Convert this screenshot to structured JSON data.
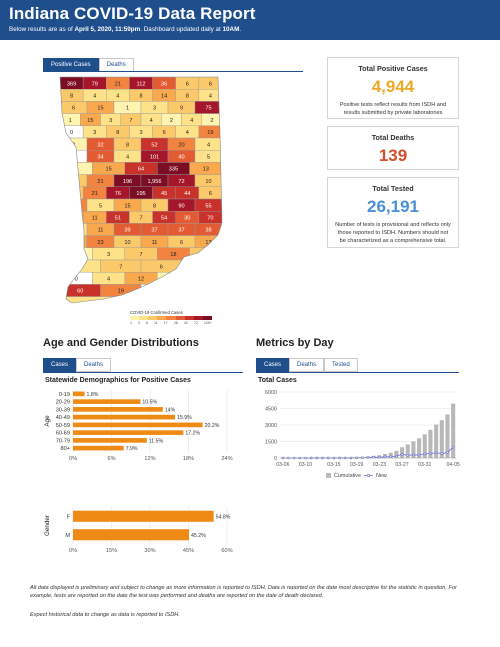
{
  "header": {
    "title": "Indiana COVID-19 Data Report",
    "subtitle_prefix": "Below results are as of ",
    "subtitle_date": "April 5, 2020, 11:59pm",
    "subtitle_mid": ". Dashboard updated daily at ",
    "subtitle_time": "10AM",
    "subtitle_end": "."
  },
  "colors": {
    "brand": "#1f4e8c",
    "positive": "#f0a828",
    "deaths": "#d24f2a",
    "tested": "#4a90d6",
    "bar": "#ef8a14"
  },
  "map_tabs": [
    {
      "label": "Positive Cases",
      "active": true
    },
    {
      "label": "Deaths",
      "active": false
    }
  ],
  "map": {
    "counts": [
      [
        "369",
        "79",
        "21",
        "112",
        "36",
        "6",
        "6"
      ],
      [
        "8",
        "4",
        "4",
        "8",
        "14",
        "8",
        "4"
      ],
      [
        "6",
        "15",
        "1",
        "3",
        "9",
        "75"
      ],
      [
        "1",
        "15",
        "3",
        "7",
        "4",
        "2",
        "4",
        "2"
      ],
      [
        "0",
        "3",
        "8",
        "3",
        "6",
        "4",
        "19"
      ],
      [
        "2",
        "32",
        "8",
        "52",
        "20",
        "4"
      ],
      [
        "0",
        "34",
        "4",
        "101",
        "40",
        "5"
      ],
      [
        "2",
        "15",
        "64",
        "335",
        "13"
      ],
      [
        "6",
        "21",
        "196",
        "1,956",
        "72",
        "10"
      ],
      [
        "6",
        "21",
        "76",
        "195",
        "45",
        "44",
        "6"
      ],
      [
        "25",
        "5",
        "15",
        "8",
        "90",
        "55"
      ],
      [
        "15",
        "11",
        "51",
        "7",
        "54",
        "30",
        "70"
      ],
      [
        "3",
        "11",
        "39",
        "37",
        "37",
        "38"
      ],
      [
        "11",
        "23",
        "10",
        "11",
        "6",
        "13"
      ],
      [
        "2",
        "3",
        "7",
        "18",
        "7"
      ],
      [
        "4",
        "7",
        "6",
        "71"
      ],
      [
        "0",
        "4",
        "12",
        "2",
        "58"
      ],
      [
        "60",
        "19",
        "0",
        "38"
      ],
      [
        "5",
        "1"
      ]
    ],
    "palette": [
      "#fff3b0",
      "#fde28a",
      "#fcc96a",
      "#f9a84e",
      "#f28440",
      "#e35b32",
      "#c9312b",
      "#a5162a",
      "#7c0d24"
    ]
  },
  "legend": {
    "title": "COVID-19 Confirmed Cases",
    "ticks": [
      "1",
      "3",
      "6",
      "11",
      "17",
      "26",
      "42",
      "72",
      "125+"
    ]
  },
  "cards": {
    "positive": {
      "title": "Total Positive Cases",
      "value": "4,944",
      "note": "Positive tests reflect results from ISDH and results submitted by private laboratories"
    },
    "deaths": {
      "title": "Total Deaths",
      "value": "139"
    },
    "tested": {
      "title": "Total Tested",
      "value": "26,191",
      "note": "Number of tests is provisional and reflects only those reported to ISDH. Numbers should not be characterized as a comprehensive total."
    }
  },
  "age_section": {
    "title": "Age and Gender Distributions",
    "tabs": [
      {
        "label": "Cases",
        "active": true
      },
      {
        "label": "Deaths",
        "active": false
      }
    ],
    "chart_title": "Statewide Demographics for Positive Cases"
  },
  "metrics_section": {
    "title": "Metrics by Day",
    "tabs": [
      {
        "label": "Cases",
        "active": true
      },
      {
        "label": "Deaths",
        "active": false
      },
      {
        "label": "Tested",
        "active": false
      }
    ],
    "chart_title": "Total Cases"
  },
  "chart_data": [
    {
      "type": "bar",
      "orientation": "horizontal",
      "ylabel": "Age",
      "categories": [
        "0-19",
        "20-29",
        "30-39",
        "40-49",
        "50-59",
        "60-69",
        "70-79",
        "80+"
      ],
      "values": [
        1.8,
        10.5,
        14.0,
        15.9,
        20.2,
        17.2,
        11.5,
        7.9
      ],
      "value_labels": [
        "1.8%",
        "10.5%",
        "14%",
        "15.9%",
        "20.2%",
        "17.2%",
        "11.5%",
        "7.9%"
      ],
      "xticks": [
        "0%",
        "6%",
        "12%",
        "18%",
        "24%"
      ],
      "xlim": [
        0,
        24
      ],
      "grid": true
    },
    {
      "type": "bar",
      "orientation": "horizontal",
      "ylabel": "Gender",
      "categories": [
        "F",
        "M"
      ],
      "values": [
        54.8,
        45.2
      ],
      "value_labels": [
        "54.8%",
        "45.2%"
      ],
      "xticks": [
        "0%",
        "15%",
        "30%",
        "45%",
        "60%"
      ],
      "xlim": [
        0,
        60
      ],
      "grid": true
    },
    {
      "type": "bar",
      "x": [
        "03-06",
        "03-07",
        "03-08",
        "03-09",
        "03-10",
        "03-11",
        "03-12",
        "03-13",
        "03-14",
        "03-15",
        "03-16",
        "03-17",
        "03-18",
        "03-19",
        "03-20",
        "03-21",
        "03-22",
        "03-23",
        "03-24",
        "03-25",
        "03-26",
        "03-27",
        "03-28",
        "03-29",
        "03-30",
        "03-31",
        "04-01",
        "04-02",
        "04-03",
        "04-04",
        "04-05"
      ],
      "xticks": [
        "03-06",
        "03-10",
        "03-15",
        "03-19",
        "03-23",
        "03-27",
        "03-31",
        "04-05"
      ],
      "series": [
        {
          "name": "Cumulative",
          "values": [
            1,
            2,
            2,
            2,
            2,
            5,
            10,
            12,
            15,
            19,
            24,
            30,
            39,
            56,
            79,
            126,
            201,
            259,
            365,
            477,
            645,
            981,
            1232,
            1513,
            1786,
            2159,
            2565,
            3039,
            3437,
            3953,
            4944
          ]
        },
        {
          "name": "New",
          "values": [
            1,
            1,
            0,
            0,
            0,
            3,
            5,
            2,
            3,
            4,
            5,
            6,
            9,
            17,
            23,
            47,
            75,
            58,
            106,
            112,
            168,
            336,
            251,
            281,
            273,
            373,
            406,
            474,
            398,
            516,
            991
          ]
        }
      ],
      "yticks": [
        "0",
        "1500",
        "3000",
        "4500",
        "6000"
      ],
      "ylim": [
        0,
        6000
      ],
      "legend": "bottom",
      "grid": true
    }
  ],
  "footer": {
    "line1": "All data displayed is preliminary and subject to change as more information is reported to ISDH. Data is reported on the date most descriptive for the statistic in question. For example, tests are reported on the date the test was performed and deaths are reported on the date of death declared.",
    "line2": "Expect historical data to change as data is reported to ISDH."
  }
}
